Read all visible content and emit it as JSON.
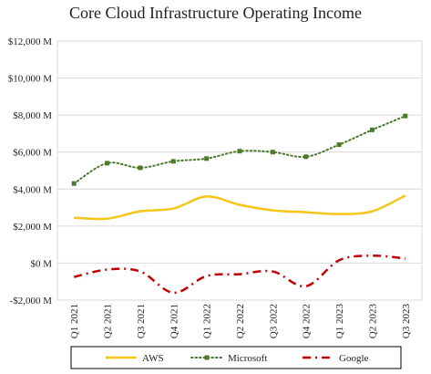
{
  "chart_data": {
    "type": "line",
    "title": "Core Cloud Infrastructure Operating Income",
    "categories": [
      "Q1 2021",
      "Q2 2021",
      "Q3 2021",
      "Q4 2021",
      "Q1 2022",
      "Q2 2022",
      "Q3 2022",
      "Q4 2022",
      "Q1 2023",
      "Q2 2023",
      "Q3 2023"
    ],
    "y_tick_labels": [
      "-$2,000 M",
      "$0 M",
      "$2,000 M",
      "$4,000 M",
      "$6,000 M",
      "$8,000 M",
      "$10,000 M",
      "$12,000 M"
    ],
    "y_ticks": [
      -2000,
      0,
      2000,
      4000,
      6000,
      8000,
      10000,
      12000
    ],
    "ylim": [
      -2000,
      12000
    ],
    "grid": true,
    "legend_position": "bottom",
    "series": [
      {
        "name": "AWS",
        "color": "#f5c518",
        "style": "solid",
        "marker": "none",
        "values": [
          2450,
          2400,
          2800,
          2950,
          3600,
          3150,
          2850,
          2750,
          2650,
          2800,
          3650
        ]
      },
      {
        "name": "Microsoft",
        "color": "#4a7a2a",
        "style": "dotted",
        "marker": "square",
        "values": [
          4300,
          5400,
          5150,
          5500,
          5650,
          6050,
          6000,
          5750,
          6400,
          7200,
          7950
        ]
      },
      {
        "name": "Google",
        "color": "#c00000",
        "style": "dash-dot",
        "marker": "none",
        "values": [
          -750,
          -350,
          -450,
          -1600,
          -700,
          -600,
          -450,
          -1250,
          150,
          400,
          250
        ]
      }
    ]
  }
}
